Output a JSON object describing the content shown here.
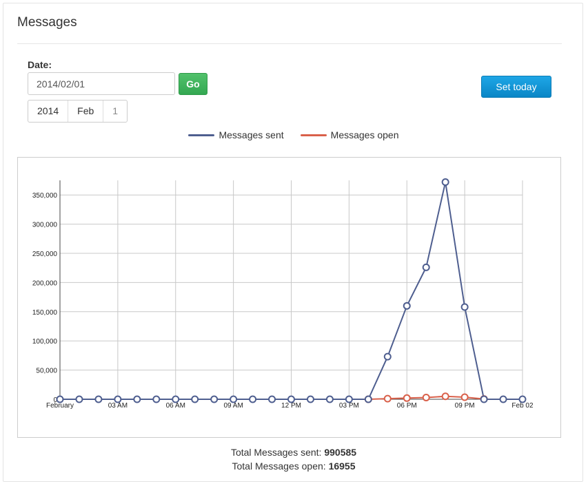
{
  "panel": {
    "title": "Messages"
  },
  "form": {
    "date_label": "Date:",
    "date_value": "2014/02/01",
    "go_label": "Go",
    "set_today_label": "Set today",
    "segments": [
      "2014",
      "Feb",
      "1"
    ]
  },
  "colors": {
    "sent": "#4e5e8f",
    "open": "#d9604a",
    "go": "#3db35b",
    "set_today": "#1497d6"
  },
  "chart_data": {
    "type": "line",
    "x_labels": [
      "February",
      "03 AM",
      "06 AM",
      "09 AM",
      "12 PM",
      "03 PM",
      "06 PM",
      "09 PM",
      "Feb 02"
    ],
    "y_ticks": [
      "0",
      "50,000",
      "100,000",
      "150,000",
      "200,000",
      "250,000",
      "300,000",
      "350,000"
    ],
    "ylim": [
      0,
      375000
    ],
    "xlim": [
      0,
      24
    ],
    "grid": true,
    "legend_position": "top-center",
    "series": [
      {
        "name": "Messages sent",
        "x": [
          0,
          1,
          2,
          3,
          4,
          5,
          6,
          7,
          8,
          9,
          10,
          11,
          12,
          13,
          14,
          15,
          16,
          17,
          18,
          19,
          20,
          21,
          22,
          23,
          24
        ],
        "values": [
          0,
          0,
          0,
          0,
          0,
          0,
          0,
          0,
          0,
          0,
          0,
          0,
          0,
          0,
          0,
          0,
          0,
          73000,
          160000,
          226000,
          372000,
          158000,
          0,
          0,
          0
        ]
      },
      {
        "name": "Messages open",
        "x": [
          16,
          17,
          18,
          19,
          20,
          21,
          22
        ],
        "values": [
          0,
          1000,
          2000,
          3000,
          5000,
          3500,
          500
        ]
      }
    ]
  },
  "totals": {
    "sent_label": "Total Messages sent:",
    "sent_value": "990585",
    "open_label": "Total Messages open:",
    "open_value": "16955"
  }
}
